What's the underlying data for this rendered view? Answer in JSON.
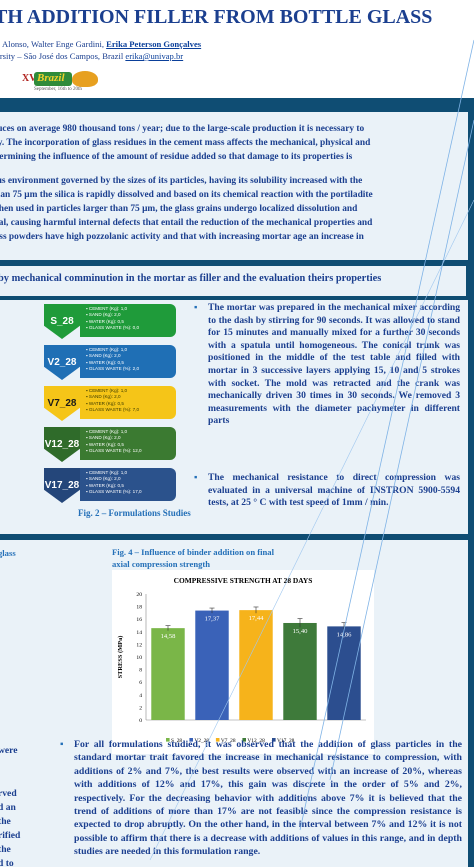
{
  "header": {
    "title": "TH ADDITION FILLER FROM BOTTLE GLASS",
    "authors_prefix": "o Alonso, Walter Enge Gardini, ",
    "author_highlight": "Erika Peterson Gonçalves",
    "affiliation_prefix": "ersity – São José dos Campos, Brazil ",
    "email": "erika@univap.br",
    "logo": {
      "roman": "XVII",
      "badge": "Brazil",
      "date": "September, 16th to 20th"
    }
  },
  "introduction": {
    "p1_l1": "duces on average 980 thousand tons / year; due to the large-scale production it is necessary to",
    "p1_l2": "ity. The incorporation of glass residues in the cement mass affects the mechanical, physical and",
    "p1_l3": "etermining the influence of the amount of residue added so that damage to its properties is",
    "p2_l1": "ous environment governed by the sizes of its particles, having its solubility increased with the",
    "p2_l2": "than 75 μm the silica is rapidly dissolved and based on its chemical reaction with the portiladite",
    "p2_l3": " when used in particles larger than 75 μm, the glass grains undergo localized dissolution and",
    "p2_l4": "rial, causing harmful internal defects that entail the reduction of the mechanical properties and",
    "p2_l5": "lass powders have high pozzolanic activity and that with increasing mortar age an increase in"
  },
  "objective": {
    "text": " by mechanical comminution in the mortar as filler and the evaluation theirs properties"
  },
  "formulations": [
    {
      "label": "S_28",
      "color": "#1f9b3a",
      "box": "#1f9b3a",
      "text": "#ffffff",
      "lines": [
        "CEMENT (Kg): 1,0",
        "SAND (Kg): 2,0",
        "WATER (Kg): 0,5",
        "GLASS WASTE (%): 0,0"
      ]
    },
    {
      "label": "V2_28",
      "color": "#1f6fb5",
      "box": "#1f6fb5",
      "text": "#ffffff",
      "lines": [
        "CEMENT (Kg): 1,0",
        "SAND (Kg): 2,0",
        "WATER (Kg): 0,5",
        "GLASS WASTE (%): 2,0"
      ]
    },
    {
      "label": "V7_28",
      "color": "#f5c518",
      "box": "#f5c518",
      "text": "#3a3a00",
      "lines": [
        "CEMENT (Kg): 1,0",
        "SAND (Kg): 2,0",
        "WATER (Kg): 0,5",
        "GLASS WASTE (%): 7,0"
      ]
    },
    {
      "label": "V12_28",
      "color": "#2f6b2a",
      "box": "#3b7a31",
      "text": "#ffffff",
      "lines": [
        "CEMENT (Kg): 1,0",
        "SAND (Kg): 2,0",
        "WATER (Kg): 0,5",
        "GLASS WASTE (%): 12,0"
      ]
    },
    {
      "label": "V17_28",
      "color": "#24467a",
      "box": "#2b528c",
      "text": "#ffffff",
      "lines": [
        "CEMENT (Kg): 1,0",
        "SAND (Kg): 2,0",
        "WATER (Kg): 0,5",
        "GLASS WASTE (%): 17,0"
      ]
    }
  ],
  "fig2_caption": "Fig. 2 – Formulations Studies",
  "methodology": {
    "bullet1": "The mortar was prepared in the mechanical mixer according to the dash by stirring for 90 seconds. It was allowed to stand for 15 minutes and manually mixed for a further 30 seconds with a spatula until homogeneous. The conical trunk was positioned in the middle of the test table and filled with mortar in 3 successive layers applying 15, 10 and 5 strokes with socket. The mold was retracted and the crank was mechanically driven 30 times in 30 seconds. We removed 3 measurements with the diameter pachymeter in different parts",
    "bullet2": "The mechanical resistance to direct compression was evaluated in a universal machine of INSTRON 5900-5594 tests, at 25 ° C with test speed of 1mm / min."
  },
  "fig_left_caption": "glass",
  "fig4_caption": "Fig. 4 – Influence of binder addition on final axial compression strength",
  "chart_data": {
    "type": "bar",
    "title": "COMPRESSIVE STRENGTH AT 28 DAYS",
    "ylabel": "STRESS (MPa)",
    "xlabel": "",
    "categories": [
      "S_28",
      "V2_28",
      "V7_28",
      "V12_28",
      "V17_28"
    ],
    "values": [
      14.58,
      17.37,
      17.44,
      15.4,
      14.86
    ],
    "value_labels": [
      "14,58",
      "17,37",
      "17,44",
      "15,40",
      "14,86"
    ],
    "errors": [
      0.4,
      0.4,
      0.5,
      0.7,
      0.6
    ],
    "colors": [
      "#7ab648",
      "#3a62b8",
      "#f6b31b",
      "#3e7a3a",
      "#2c4e8f"
    ],
    "ylim": [
      0,
      20
    ],
    "yticks": [
      0,
      2,
      4,
      6,
      8,
      10,
      12,
      14,
      16,
      18,
      20
    ],
    "legend": "bottom",
    "grid": false
  },
  "left_fragments": [
    "were",
    "rved",
    "d an",
    "the",
    "rified",
    "the",
    "d to"
  ],
  "results": {
    "text": "For all formulations studied, it was observed that the addition of glass particles in the standard mortar trait favored the increase in mechanical resistance to compression, with additions of 2% and 7%, the best results were observed with an increase of 20%, whereas with additions of 12% and 17%, this gain was discrete in the order of 5% and 2%, respectively. For the decreasing behavior with additions above 7% it is believed that the trend of additions of more than 17% are not feasible since the compression resistance is expected to drop abruptly. On the other hand, in the interval between 7% and 12% it is not possible to affirm that there is a decrease with additions of values in this range, and in depth studies are needed in this formulation range."
  }
}
